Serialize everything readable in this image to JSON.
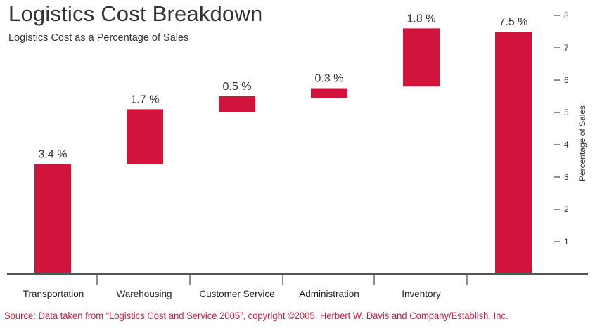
{
  "colors": {
    "bar": "#d2143c",
    "source_text": "#d41a3c",
    "axis": "#555555",
    "text": "#333333"
  },
  "chart_data": {
    "type": "bar",
    "subtype": "waterfall",
    "title": "Logistics Cost Breakdown",
    "subtitle": "Logistics Cost as a Percentage of Sales",
    "ylabel": "Percentage of Sales",
    "ylim": [
      0,
      8
    ],
    "yticks": [
      1,
      2,
      3,
      4,
      5,
      6,
      7,
      8
    ],
    "categories": [
      "Transportation",
      "Warehousing",
      "Customer Service",
      "Administration",
      "Inventory",
      ""
    ],
    "values": [
      3.4,
      1.7,
      0.5,
      0.3,
      1.8,
      7.5
    ],
    "bases": [
      0,
      3.4,
      5.0,
      5.45,
      5.8,
      0
    ],
    "data_labels": [
      "3.4 %",
      "1.7 %",
      "0.5 %",
      "0.3 %",
      "1.8 %",
      "7.5 %"
    ],
    "total_bar_index": 5
  },
  "source": "Source: Data taken from “Logistics Cost and Service 2005”, copyright ©2005, Herbert W. Davis and Company/Establish, Inc."
}
